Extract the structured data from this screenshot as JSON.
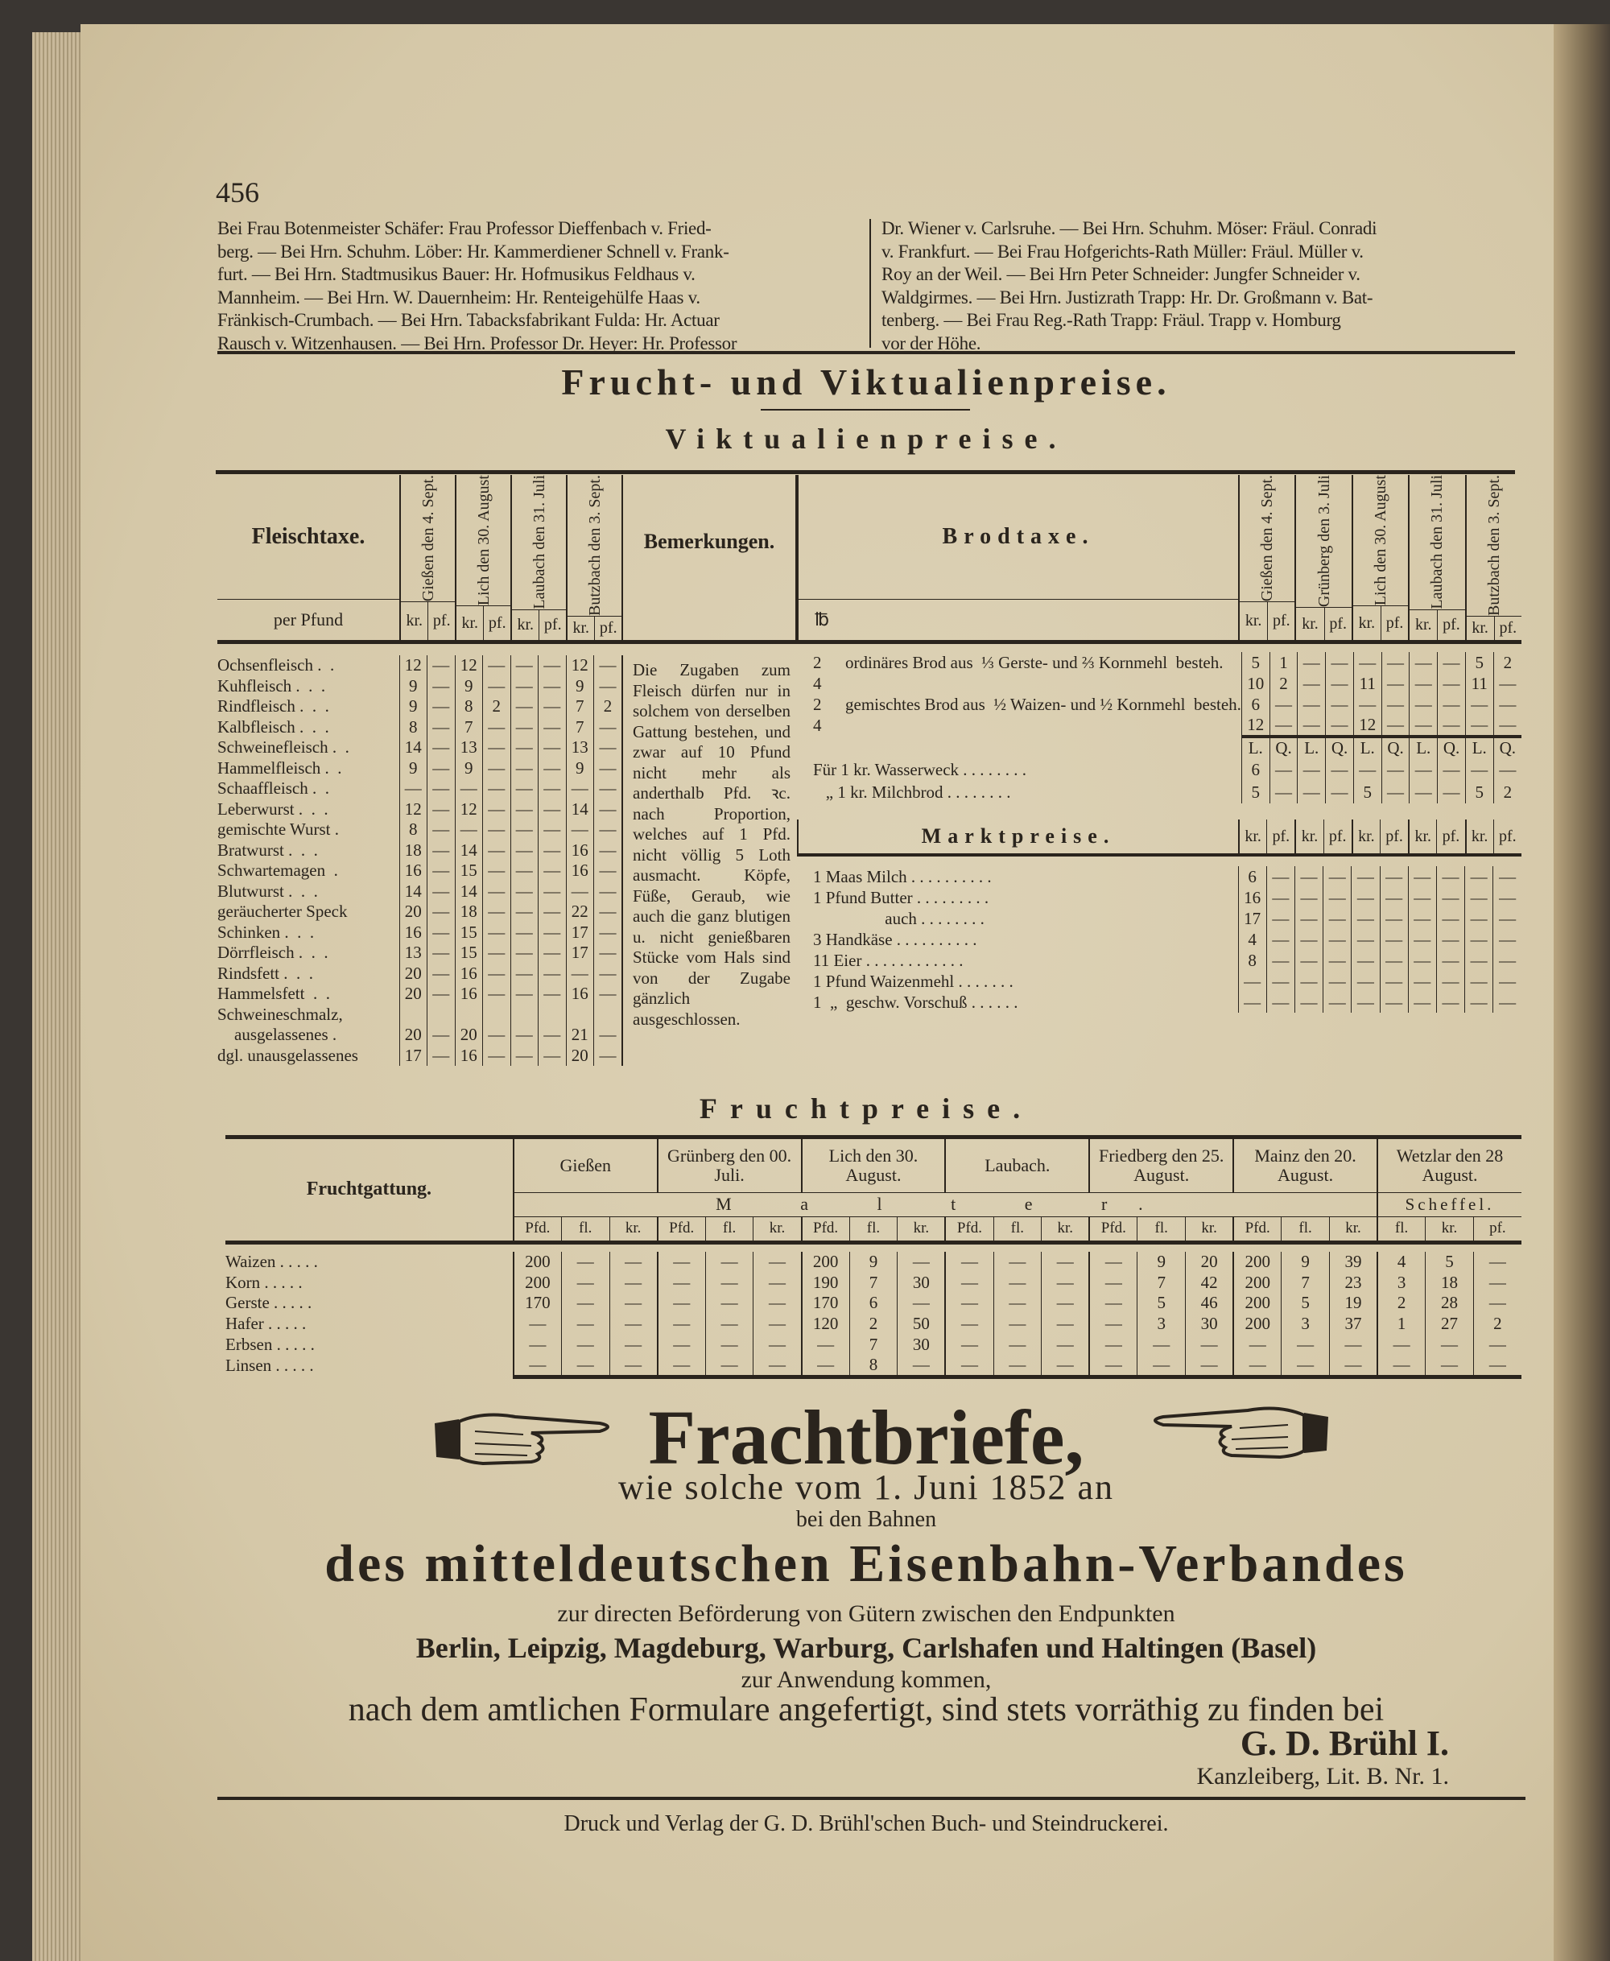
{
  "page_number": "456",
  "notices": {
    "left": [
      "Bei Frau Botenmeister Schäfer: Frau Professor Dieffenbach v. Fried-",
      "berg. — Bei Hrn. Schuhm. Löber: Hr. Kammerdiener Schnell v. Frank-",
      "furt. — Bei Hrn. Stadtmusikus Bauer: Hr. Hofmusikus Feldhaus v.",
      "Mannheim. — Bei Hrn. W. Dauernheim: Hr. Renteigehülfe Haas v.",
      "Fränkisch-Crumbach. — Bei Hrn. Tabacksfabrikant Fulda: Hr. Actuar",
      "Rausch v. Witzenhausen. — Bei Hrn. Professor Dr. Heyer: Hr. Professor"
    ],
    "right": [
      "Dr. Wiener v. Carlsruhe. — Bei Hrn. Schuhm. Möser: Fräul. Conradi",
      "v. Frankfurt. — Bei Frau Hofgerichts-Rath Müller: Fräul. Müller v.",
      "Roy an der Weil. — Bei Hrn Peter Schneider: Jungfer Schneider v.",
      "Waldgirmes. — Bei Hrn. Justizrath Trapp: Hr. Dr. Großmann v. Bat-",
      "tenberg. — Bei Frau Reg.-Rath Trapp: Fräul. Trapp v. Homburg",
      "vor der Höhe."
    ]
  },
  "main_title": "Frucht- und Viktualienpreise.",
  "viktualien_title": "Viktualienpreise.",
  "fleischtaxe": {
    "title": "Fleischtaxe.",
    "unit_label": "per Pfund",
    "remarks_header": "Bemerkungen.",
    "places": [
      "Gießen den 4. Sept.",
      "Lich den 30. August",
      "Laubach den 31. Juli",
      "Butzbach den 3. Sept."
    ],
    "subcols": [
      "kr.",
      "pf."
    ],
    "rows": [
      {
        "name": "Ochsenfleisch .  .",
        "v": [
          "12",
          "—",
          "12",
          "—",
          "—",
          "—",
          "12",
          "—"
        ]
      },
      {
        "name": "Kuhfleisch .  .  .",
        "v": [
          "9",
          "—",
          "9",
          "—",
          "—",
          "—",
          "9",
          "—"
        ]
      },
      {
        "name": "Rindfleisch .  .  .",
        "v": [
          "9",
          "—",
          "8",
          "2",
          "—",
          "—",
          "7",
          "2"
        ]
      },
      {
        "name": "Kalbfleisch .  .  .",
        "v": [
          "8",
          "—",
          "7",
          "—",
          "—",
          "—",
          "7",
          "—"
        ]
      },
      {
        "name": "Schweinefleisch .  .",
        "v": [
          "14",
          "—",
          "13",
          "—",
          "—",
          "—",
          "13",
          "—"
        ]
      },
      {
        "name": "Hammelfleisch .  .",
        "v": [
          "9",
          "—",
          "9",
          "—",
          "—",
          "—",
          "9",
          "—"
        ]
      },
      {
        "name": "Schaaffleisch .  .",
        "v": [
          "—",
          "—",
          "—",
          "—",
          "—",
          "—",
          "—",
          "—"
        ]
      },
      {
        "name": "Leberwurst .  .  .",
        "v": [
          "12",
          "—",
          "12",
          "—",
          "—",
          "—",
          "14",
          "—"
        ]
      },
      {
        "name": "gemischte Wurst .",
        "v": [
          "8",
          "—",
          "—",
          "—",
          "—",
          "—",
          "—",
          "—"
        ]
      },
      {
        "name": "Bratwurst .  .  .",
        "v": [
          "18",
          "—",
          "14",
          "—",
          "—",
          "—",
          "16",
          "—"
        ]
      },
      {
        "name": "Schwartemagen  .",
        "v": [
          "16",
          "—",
          "15",
          "—",
          "—",
          "—",
          "16",
          "—"
        ]
      },
      {
        "name": "Blutwurst .  .  .",
        "v": [
          "14",
          "—",
          "14",
          "—",
          "—",
          "—",
          "—",
          "—"
        ]
      },
      {
        "name": "geräucherter Speck",
        "v": [
          "20",
          "—",
          "18",
          "—",
          "—",
          "—",
          "22",
          "—"
        ]
      },
      {
        "name": "Schinken .  .  .",
        "v": [
          "16",
          "—",
          "15",
          "—",
          "—",
          "—",
          "17",
          "—"
        ]
      },
      {
        "name": "Dörrfleisch .  .  .",
        "v": [
          "13",
          "—",
          "15",
          "—",
          "—",
          "—",
          "17",
          "—"
        ]
      },
      {
        "name": "Rindsfett .  .  .",
        "v": [
          "20",
          "—",
          "16",
          "—",
          "—",
          "—",
          "—",
          "—"
        ]
      },
      {
        "name": "Hammelsfett  .  .",
        "v": [
          "20",
          "—",
          "16",
          "—",
          "—",
          "—",
          "16",
          "—"
        ]
      },
      {
        "name": "Schweineschmalz,",
        "v": [
          "",
          "",
          "",
          "",
          "",
          "",
          "",
          ""
        ]
      },
      {
        "name": "    ausgelassenes .",
        "v": [
          "20",
          "—",
          "20",
          "—",
          "—",
          "—",
          "21",
          "—"
        ]
      },
      {
        "name": "dgl. unausgelassenes",
        "v": [
          "17",
          "—",
          "16",
          "—",
          "—",
          "—",
          "20",
          "—"
        ]
      }
    ],
    "remarks": "Die Zugaben zum Fleisch dürfen nur in solchem von derselben Gattung bestehen, und zwar auf 10 Pfund nicht mehr als anderthalb Pfd. ꝛc. nach Proportion, welches auf 1 Pfd. nicht völlig 5 Loth ausmacht. Köpfe, Füße, Geraub, wie auch die ganz blutigen u. nicht genießbaren Stücke vom Hals sind von der Zugabe gänzlich ausgeschlossen."
  },
  "brodtaxe": {
    "title": "Brodtaxe.",
    "weight_label": "℔",
    "places": [
      "Gießen den 4. Sept.",
      "Grünberg den 3. Juli",
      "Lich den 30. August",
      "Laubach den 31. Juli",
      "Butzbach den 3. Sept."
    ],
    "subcols": [
      "kr.",
      "pf."
    ],
    "lq": [
      "L.",
      "Q."
    ],
    "rows": [
      {
        "w": "2",
        "desc": "ordinäres Brod aus  ⅓ Gerste- und ⅔ Kornmehl  besteh.",
        "v": [
          "5",
          "1",
          "—",
          "—",
          "—",
          "—",
          "—",
          "—",
          "5",
          "2"
        ]
      },
      {
        "w": "4",
        "desc": "",
        "v": [
          "10",
          "2",
          "—",
          "—",
          "11",
          "—",
          "—",
          "—",
          "11",
          "—"
        ]
      },
      {
        "w": "2",
        "desc": "gemischtes Brod aus  ½ Waizen- und ½ Kornmehl  besteh.",
        "v": [
          "6",
          "—",
          "—",
          "—",
          "—",
          "—",
          "—",
          "—",
          "—",
          "—"
        ]
      },
      {
        "w": "4",
        "desc": "",
        "v": [
          "12",
          "—",
          "—",
          "—",
          "12",
          "—",
          "—",
          "—",
          "—",
          "—"
        ]
      }
    ],
    "small_rows": [
      {
        "desc": "Für 1 kr. Wasserweck . . . . . . . .",
        "v": [
          "6",
          "—",
          "—",
          "—",
          "—",
          "—",
          "—",
          "—",
          "—",
          "—"
        ]
      },
      {
        "desc": "   „ 1 kr. Milchbrod . . . . . . . .",
        "v": [
          "5",
          "—",
          "—",
          "—",
          "5",
          "—",
          "—",
          "—",
          "5",
          "2"
        ]
      }
    ]
  },
  "marktpreise": {
    "title": "Marktpreise.",
    "rows": [
      {
        "desc": "1 Maas Milch . . . . . . . . . .",
        "v": [
          "6",
          "—",
          "—",
          "—",
          "—",
          "—",
          "—",
          "—",
          "—",
          "—"
        ]
      },
      {
        "desc": "1 Pfund Butter . . . . . . . . .",
        "v": [
          "16",
          "—",
          "—",
          "—",
          "—",
          "—",
          "—",
          "—",
          "—",
          "—"
        ]
      },
      {
        "desc": "                 auch . . . . . . . .",
        "v": [
          "17",
          "—",
          "—",
          "—",
          "—",
          "—",
          "—",
          "—",
          "—",
          "—"
        ]
      },
      {
        "desc": "3 Handkäse . . . . . . . . . .",
        "v": [
          "4",
          "—",
          "—",
          "—",
          "—",
          "—",
          "—",
          "—",
          "—",
          "—"
        ]
      },
      {
        "desc": "11 Eier . . . . . . . . . . . .",
        "v": [
          "8",
          "—",
          "—",
          "—",
          "—",
          "—",
          "—",
          "—",
          "—",
          "—"
        ]
      },
      {
        "desc": "1 Pfund Waizenmehl . . . . . . .",
        "v": [
          "—",
          "—",
          "—",
          "—",
          "—",
          "—",
          "—",
          "—",
          "—",
          "—"
        ]
      },
      {
        "desc": "1  „  geschw. Vorschuß . . . . . .",
        "v": [
          "—",
          "—",
          "—",
          "—",
          "—",
          "—",
          "—",
          "—",
          "—",
          "—"
        ]
      }
    ]
  },
  "fruchtpreise": {
    "title": "Fruchtpreise.",
    "label": "Fruchtgattung.",
    "places": [
      "Gießen",
      "Grünberg den 00. Juli.",
      "Lich den 30. August.",
      "Laubach.",
      "Friedberg den 25. August.",
      "Mainz den 20. August.",
      "Wetzlar den 28 August."
    ],
    "malter_label": "M a l t e r.",
    "scheffel_label": "Scheffel.",
    "subcols": [
      "Pfd.",
      "fl.",
      "kr."
    ],
    "wetzlar_subcols": [
      "fl.",
      "kr.",
      "pf."
    ],
    "rows": [
      {
        "name": "Waizen . . . . .",
        "v": [
          "200",
          "—",
          "—",
          "—",
          "—",
          "—",
          "200",
          "9",
          "—",
          "—",
          "—",
          "—",
          "—",
          "9",
          "20",
          "200",
          "9",
          "39",
          "4",
          "5",
          "—"
        ]
      },
      {
        "name": "Korn . . . . .",
        "v": [
          "200",
          "—",
          "—",
          "—",
          "—",
          "—",
          "190",
          "7",
          "30",
          "—",
          "—",
          "—",
          "—",
          "7",
          "42",
          "200",
          "7",
          "23",
          "3",
          "18",
          "—"
        ]
      },
      {
        "name": "Gerste . . . . .",
        "v": [
          "170",
          "—",
          "—",
          "—",
          "—",
          "—",
          "170",
          "6",
          "—",
          "—",
          "—",
          "—",
          "—",
          "5",
          "46",
          "200",
          "5",
          "19",
          "2",
          "28",
          "—"
        ]
      },
      {
        "name": "Hafer . . . . .",
        "v": [
          "—",
          "—",
          "—",
          "—",
          "—",
          "—",
          "120",
          "2",
          "50",
          "—",
          "—",
          "—",
          "—",
          "3",
          "30",
          "200",
          "3",
          "37",
          "1",
          "27",
          "2"
        ]
      },
      {
        "name": "Erbsen . . . . .",
        "v": [
          "—",
          "—",
          "—",
          "—",
          "—",
          "—",
          "—",
          "7",
          "30",
          "—",
          "—",
          "—",
          "—",
          "—",
          "—",
          "—",
          "—",
          "—",
          "—",
          "—",
          "—"
        ]
      },
      {
        "name": "Linsen . . . . .",
        "v": [
          "—",
          "—",
          "—",
          "—",
          "—",
          "—",
          "—",
          "8",
          "—",
          "—",
          "—",
          "—",
          "—",
          "—",
          "—",
          "—",
          "—",
          "—",
          "—",
          "—",
          "—"
        ]
      }
    ]
  },
  "advertisement": {
    "headline": "Frachtbriefe,",
    "line1": "wie solche vom 1. Juni 1852 an",
    "line2": "bei den Bahnen",
    "line3": "des mitteldeutschen Eisenbahn-Verbandes",
    "line4": "zur directen Beförderung von Gütern zwischen den Endpunkten",
    "line5": "Berlin, Leipzig, Magdeburg, Warburg, Carlshafen und Haltingen (Basel)",
    "line6": "zur Anwendung kommen,",
    "line7": "nach dem amtlichen Formulare angefertigt, sind stets vorräthig zu finden bei",
    "signature": "G. D. Brühl I.",
    "address": "Kanzleiberg, Lit. B. Nr. 1."
  },
  "imprint": "Druck und Verlag der G. D. Brühl'schen Buch- und Steindruckerei."
}
